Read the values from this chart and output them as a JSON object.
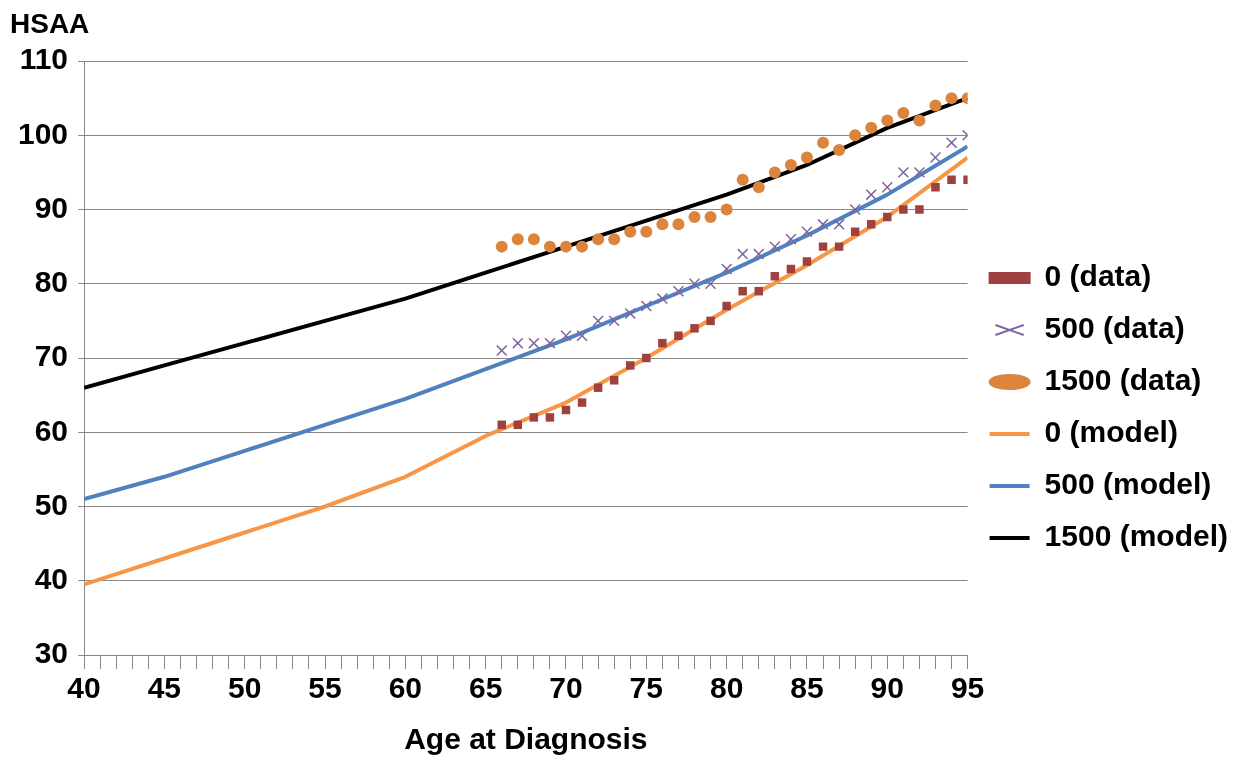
{
  "chart_data": {
    "type": "line",
    "xlabel": "Age at Diagnosis",
    "ylabel": "HSAA",
    "xlim": [
      40,
      95
    ],
    "ylim": [
      30,
      110
    ],
    "xticks": [
      40,
      {
        "value": 41,
        "label": null
      },
      {
        "value": 42,
        "label": null
      },
      {
        "value": 43,
        "label": null
      },
      {
        "value": 44,
        "label": null
      },
      45,
      {
        "value": 46,
        "label": null
      },
      {
        "value": 47,
        "label": null
      },
      {
        "value": 48,
        "label": null
      },
      {
        "value": 49,
        "label": null
      },
      50,
      {
        "value": 51,
        "label": null
      },
      {
        "value": 52,
        "label": null
      },
      {
        "value": 53,
        "label": null
      },
      {
        "value": 54,
        "label": null
      },
      55,
      {
        "value": 56,
        "label": null
      },
      {
        "value": 57,
        "label": null
      },
      {
        "value": 58,
        "label": null
      },
      {
        "value": 59,
        "label": null
      },
      60,
      {
        "value": 61,
        "label": null
      },
      {
        "value": 62,
        "label": null
      },
      {
        "value": 63,
        "label": null
      },
      {
        "value": 64,
        "label": null
      },
      65,
      {
        "value": 66,
        "label": null
      },
      {
        "value": 67,
        "label": null
      },
      {
        "value": 68,
        "label": null
      },
      {
        "value": 69,
        "label": null
      },
      70,
      {
        "value": 71,
        "label": null
      },
      {
        "value": 72,
        "label": null
      },
      {
        "value": 73,
        "label": null
      },
      {
        "value": 74,
        "label": null
      },
      75,
      {
        "value": 76,
        "label": null
      },
      {
        "value": 77,
        "label": null
      },
      {
        "value": 78,
        "label": null
      },
      {
        "value": 79,
        "label": null
      },
      80,
      {
        "value": 81,
        "label": null
      },
      {
        "value": 82,
        "label": null
      },
      {
        "value": 83,
        "label": null
      },
      {
        "value": 84,
        "label": null
      },
      85,
      {
        "value": 86,
        "label": null
      },
      {
        "value": 87,
        "label": null
      },
      {
        "value": 88,
        "label": null
      },
      {
        "value": 89,
        "label": null
      },
      90,
      {
        "value": 91,
        "label": null
      },
      {
        "value": 92,
        "label": null
      },
      {
        "value": 93,
        "label": null
      },
      {
        "value": 94,
        "label": null
      },
      95
    ],
    "yticks": [
      30,
      40,
      50,
      60,
      70,
      80,
      90,
      100,
      110
    ],
    "grid": "y",
    "legend": "right",
    "series": [
      {
        "name": "0 (data)",
        "type": "scatter",
        "marker": "square",
        "color": "#a0403f",
        "x": [
          66,
          67,
          68,
          69,
          70,
          71,
          72,
          73,
          74,
          75,
          76,
          77,
          78,
          79,
          80,
          81,
          82,
          83,
          84,
          85,
          86,
          87,
          88,
          89,
          90,
          91,
          92,
          93,
          94,
          95
        ],
        "values": [
          61,
          61,
          62,
          62,
          63,
          64,
          66,
          67,
          69,
          70,
          72,
          73,
          74,
          75,
          77,
          79,
          79,
          81,
          82,
          83,
          85,
          85,
          87,
          88,
          89,
          90,
          90,
          93,
          94,
          94
        ]
      },
      {
        "name": "500 (data)",
        "type": "scatter",
        "marker": "cross",
        "color": "#8064a2",
        "x": [
          66,
          67,
          68,
          69,
          70,
          71,
          72,
          73,
          74,
          75,
          76,
          77,
          78,
          79,
          80,
          81,
          82,
          83,
          84,
          85,
          86,
          87,
          88,
          89,
          90,
          91,
          92,
          93,
          94,
          95
        ],
        "values": [
          71,
          72,
          72,
          72,
          73,
          73,
          75,
          75,
          76,
          77,
          78,
          79,
          80,
          80,
          82,
          84,
          84,
          85,
          86,
          87,
          88,
          88,
          90,
          92,
          93,
          95,
          95,
          97,
          99,
          100
        ]
      },
      {
        "name": "1500 (data)",
        "type": "scatter",
        "marker": "circle",
        "color": "#da843c",
        "x": [
          66,
          67,
          68,
          69,
          70,
          71,
          72,
          73,
          74,
          75,
          76,
          77,
          78,
          79,
          80,
          81,
          82,
          83,
          84,
          85,
          86,
          87,
          88,
          89,
          90,
          91,
          92,
          93,
          94,
          95
        ],
        "values": [
          85,
          86,
          86,
          85,
          85,
          85,
          86,
          86,
          87,
          87,
          88,
          88,
          89,
          89,
          90,
          94,
          93,
          95,
          96,
          97,
          99,
          98,
          100,
          101,
          102,
          103,
          102,
          104,
          105,
          105
        ]
      },
      {
        "name": "0 (model)",
        "type": "line",
        "marker": "none",
        "color": "#f79646",
        "x": [
          40,
          45,
          50,
          55,
          60,
          65,
          70,
          75,
          80,
          85,
          90,
          95
        ],
        "values": [
          39.5,
          43,
          46.5,
          50,
          54,
          59.5,
          64,
          70,
          76.5,
          82.5,
          89,
          97
        ]
      },
      {
        "name": "500 (model)",
        "type": "line",
        "marker": "none",
        "color": "#4f81bd",
        "x": [
          40,
          45,
          50,
          55,
          60,
          65,
          70,
          75,
          80,
          85,
          90,
          95
        ],
        "values": [
          51,
          54,
          57.5,
          61,
          64.5,
          68.5,
          72.5,
          77,
          81.5,
          86.5,
          92,
          98.5
        ]
      },
      {
        "name": "1500 (model)",
        "type": "line",
        "marker": "none",
        "color": "#000000",
        "x": [
          40,
          45,
          50,
          55,
          60,
          65,
          70,
          75,
          80,
          85,
          90,
          95
        ],
        "values": [
          66,
          69,
          72,
          75,
          78,
          81.5,
          85,
          88.5,
          92,
          96,
          101,
          105
        ]
      }
    ]
  }
}
